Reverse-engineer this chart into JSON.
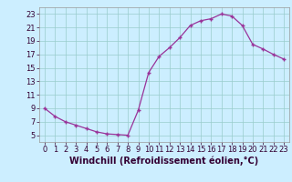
{
  "x": [
    0,
    1,
    2,
    3,
    4,
    5,
    6,
    7,
    8,
    9,
    10,
    11,
    12,
    13,
    14,
    15,
    16,
    17,
    18,
    19,
    20,
    21,
    22,
    23
  ],
  "y": [
    9,
    7.8,
    7.0,
    6.5,
    6.0,
    5.5,
    5.2,
    5.1,
    5.0,
    8.7,
    14.3,
    16.7,
    18.0,
    19.5,
    21.3,
    22.0,
    22.3,
    23.0,
    22.7,
    21.3,
    18.5,
    17.8,
    17.0,
    16.3
  ],
  "line_color": "#993399",
  "marker": "+",
  "marker_size": 3.5,
  "bg_color": "#cceeff",
  "grid_color": "#99cccc",
  "xlabel": "Windchill (Refroidissement éolien,°C)",
  "xlabel_fontsize": 7,
  "tick_fontsize": 6,
  "ylim": [
    4,
    24
  ],
  "yticks": [
    5,
    7,
    9,
    11,
    13,
    15,
    17,
    19,
    21,
    23
  ],
  "xlim": [
    -0.5,
    23.5
  ],
  "xticks": [
    0,
    1,
    2,
    3,
    4,
    5,
    6,
    7,
    8,
    9,
    10,
    11,
    12,
    13,
    14,
    15,
    16,
    17,
    18,
    19,
    20,
    21,
    22,
    23
  ],
  "spine_color": "#999999"
}
